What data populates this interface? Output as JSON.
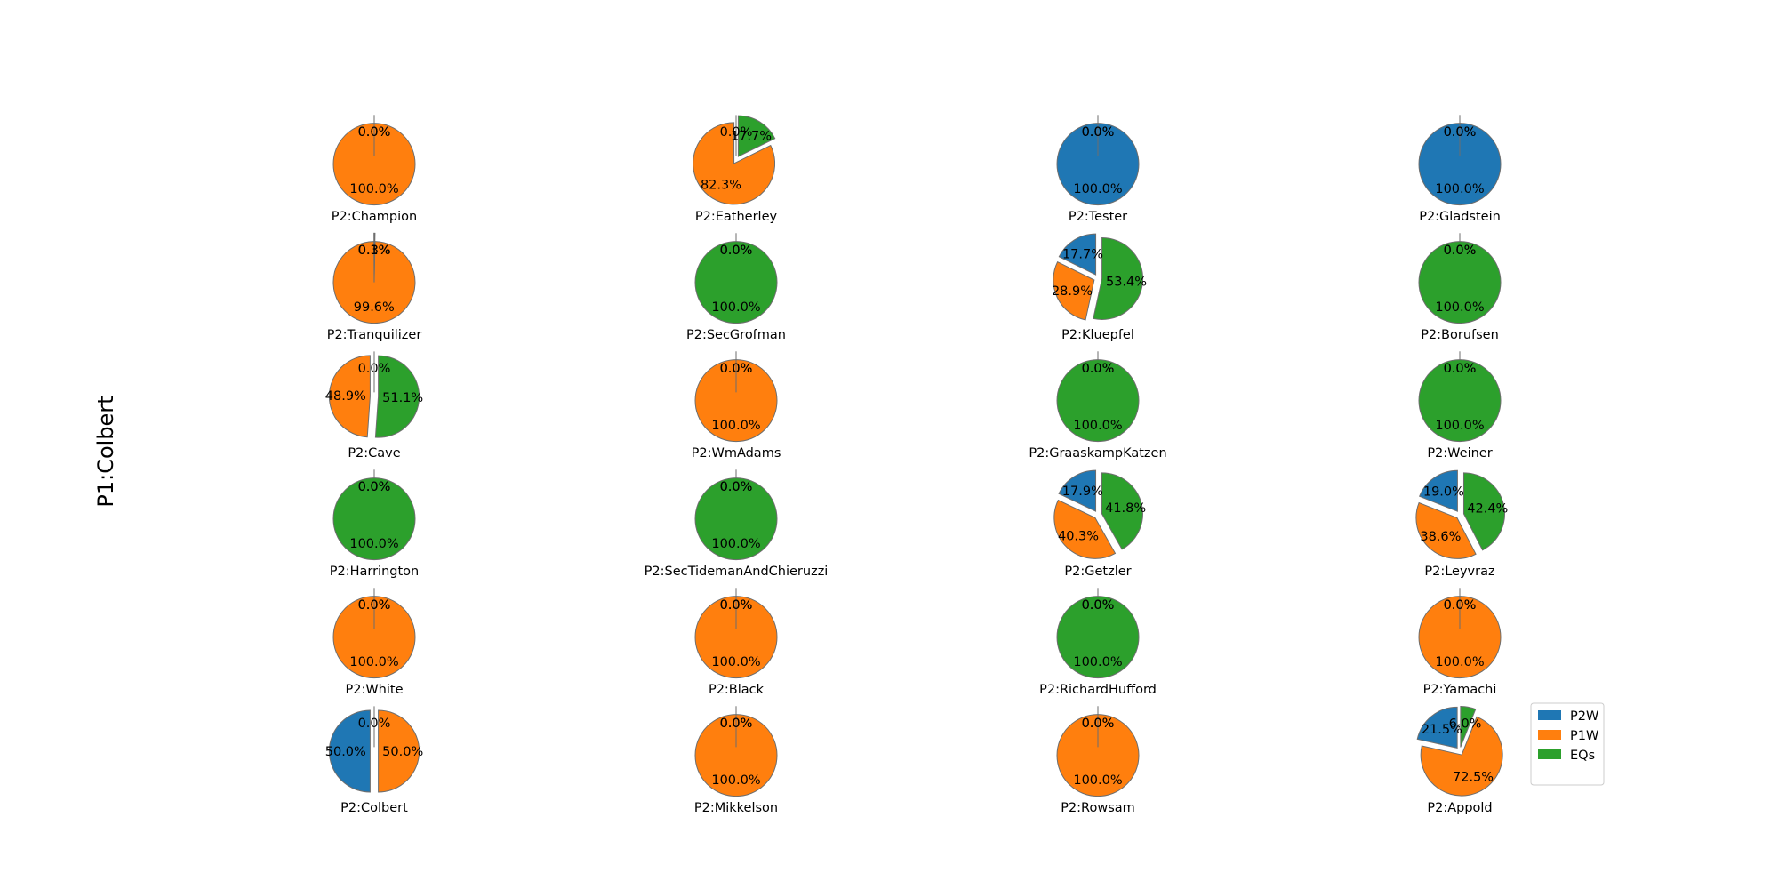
{
  "colors": {
    "P2W": "#1f77b4",
    "P1W": "#ff7f0e",
    "EQs": "#2ca02c",
    "edge": "#6e6e6e"
  },
  "chart_data": {
    "type": "pie",
    "ylabel": "P1:Colbert",
    "legend": {
      "placement": "bottom-right",
      "entries": [
        "P2W",
        "P1W",
        "EQs"
      ]
    },
    "slice_order": [
      "P2W",
      "P1W",
      "EQs"
    ],
    "pies": [
      {
        "title": "P2:Champion",
        "values": [
          0.0,
          100.0,
          0.0
        ]
      },
      {
        "title": "P2:Eatherley",
        "values": [
          0.0,
          82.3,
          17.7
        ]
      },
      {
        "title": "P2:Tester",
        "values": [
          100.0,
          0.0,
          0.0
        ]
      },
      {
        "title": "P2:Gladstein",
        "values": [
          100.0,
          0.0,
          0.0
        ]
      },
      {
        "title": "P2:Tranquilizer",
        "values": [
          0.1,
          99.6,
          0.3
        ]
      },
      {
        "title": "P2:SecGrofman",
        "values": [
          0.0,
          0.0,
          100.0
        ]
      },
      {
        "title": "P2:Kluepfel",
        "values": [
          17.7,
          28.9,
          53.4
        ]
      },
      {
        "title": "P2:Borufsen",
        "values": [
          0.0,
          0.0,
          100.0
        ]
      },
      {
        "title": "P2:Cave",
        "values": [
          0.0,
          48.9,
          51.1
        ]
      },
      {
        "title": "P2:WmAdams",
        "values": [
          0.0,
          100.0,
          0.0
        ]
      },
      {
        "title": "P2:GraaskampKatzen",
        "values": [
          0.0,
          0.0,
          100.0
        ]
      },
      {
        "title": "P2:Weiner",
        "values": [
          0.0,
          0.0,
          100.0
        ]
      },
      {
        "title": "P2:Harrington",
        "values": [
          0.0,
          0.0,
          100.0
        ]
      },
      {
        "title": "P2:SecTidemanAndChieruzzi",
        "values": [
          0.0,
          0.0,
          100.0
        ]
      },
      {
        "title": "P2:Getzler",
        "values": [
          17.9,
          40.3,
          41.8
        ]
      },
      {
        "title": "P2:Leyvraz",
        "values": [
          19.0,
          38.6,
          42.4
        ]
      },
      {
        "title": "P2:White",
        "values": [
          0.0,
          100.0,
          0.0
        ]
      },
      {
        "title": "P2:Black",
        "values": [
          0.0,
          100.0,
          0.0
        ]
      },
      {
        "title": "P2:RichardHufford",
        "values": [
          0.0,
          0.0,
          100.0
        ]
      },
      {
        "title": "P2:Yamachi",
        "values": [
          0.0,
          100.0,
          0.0
        ]
      },
      {
        "title": "P2:Colbert",
        "values": [
          50.0,
          50.0,
          0.0
        ]
      },
      {
        "title": "P2:Mikkelson",
        "values": [
          0.0,
          100.0,
          0.0
        ]
      },
      {
        "title": "P2:Rowsam",
        "values": [
          0.0,
          100.0,
          0.0
        ]
      },
      {
        "title": "P2:Appold",
        "values": [
          21.5,
          72.5,
          6.0
        ]
      }
    ]
  }
}
